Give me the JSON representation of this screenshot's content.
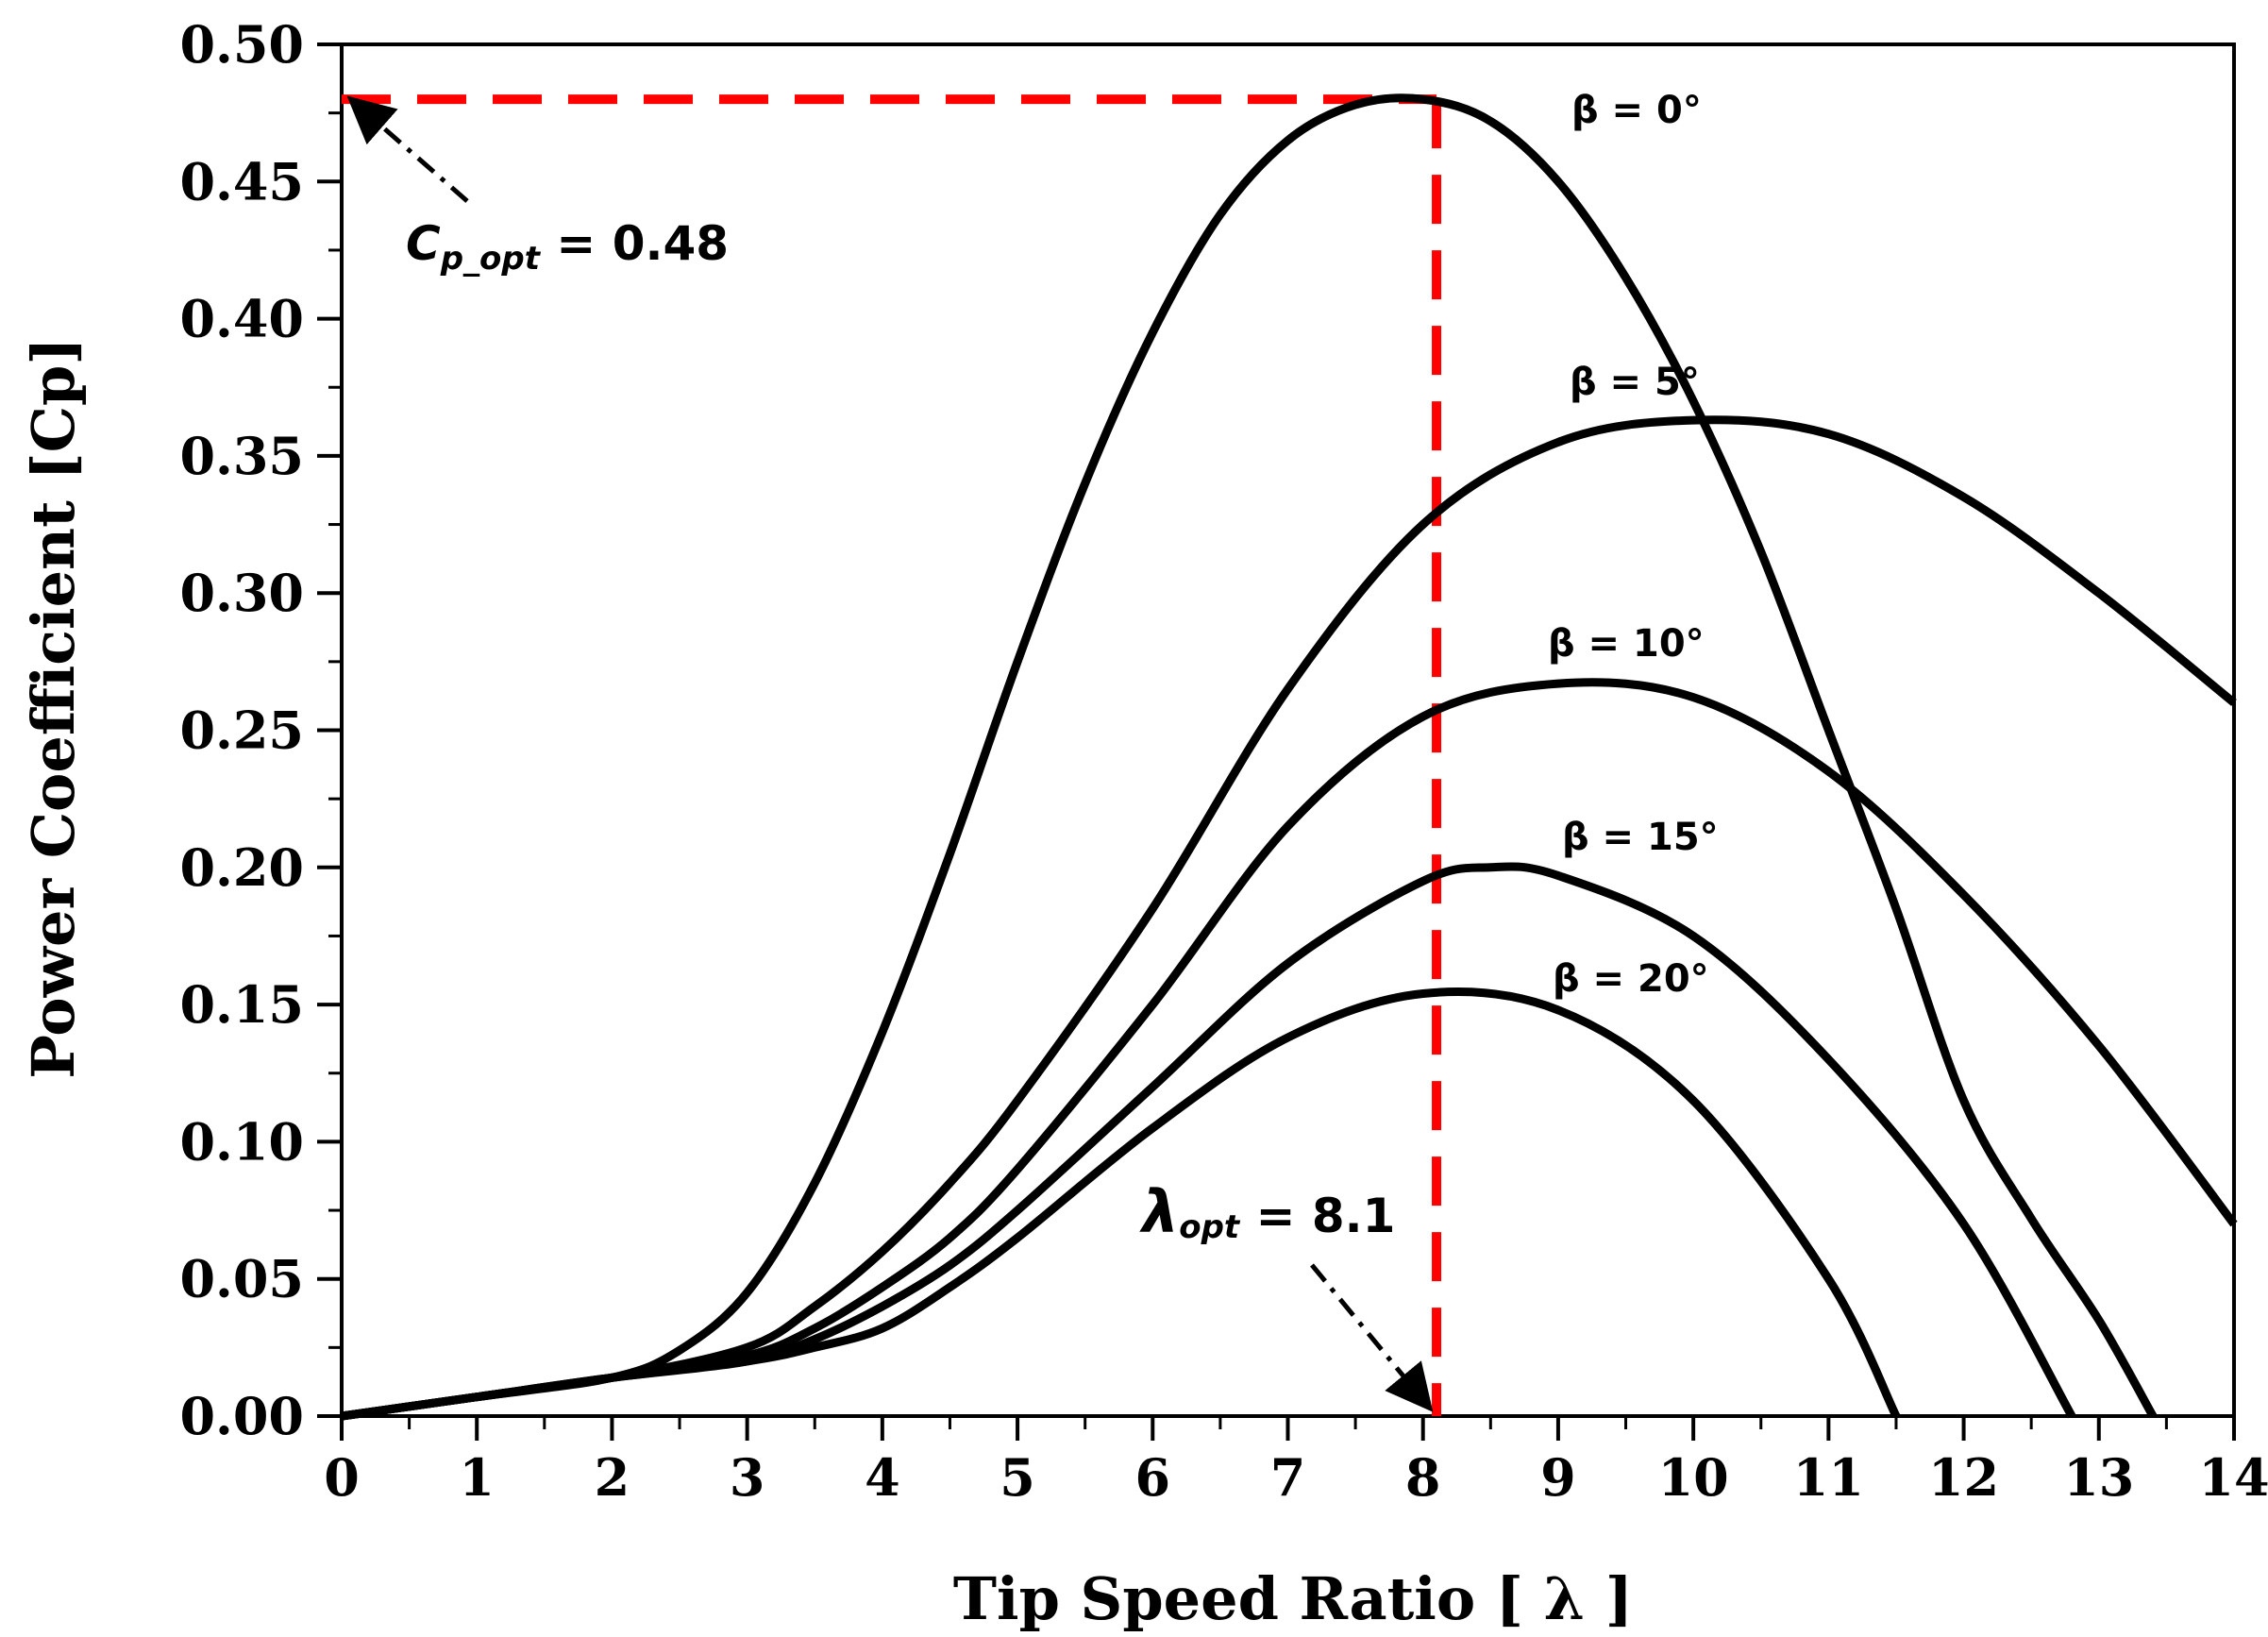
{
  "chart_data": {
    "type": "line",
    "xlabel": "Tip Speed Ratio [ λ ]",
    "ylabel": "Power Coefficient [Cp]",
    "xlim": [
      0,
      14
    ],
    "ylim": [
      0,
      0.5
    ],
    "xticks": [
      "0",
      "1",
      "2",
      "3",
      "4",
      "5",
      "6",
      "7",
      "8",
      "9",
      "10",
      "11",
      "12",
      "13",
      "14"
    ],
    "yticks": [
      "0.00",
      "0.05",
      "0.10",
      "0.15",
      "0.20",
      "0.25",
      "0.30",
      "0.35",
      "0.40",
      "0.45",
      "0.50"
    ],
    "grid": false,
    "series": [
      {
        "name": "β = 0°",
        "x": [
          0,
          1,
          2,
          2.5,
          3,
          3.5,
          4,
          4.5,
          5,
          5.5,
          6,
          6.5,
          7,
          7.5,
          8,
          8.5,
          9,
          9.5,
          10,
          10.5,
          11,
          11.5,
          12,
          12.5,
          13,
          13.4
        ],
        "y": [
          0,
          0.007,
          0.014,
          0.024,
          0.045,
          0.085,
          0.14,
          0.205,
          0.275,
          0.34,
          0.395,
          0.438,
          0.465,
          0.478,
          0.48,
          0.472,
          0.45,
          0.415,
          0.37,
          0.315,
          0.25,
          0.185,
          0.115,
          0.072,
          0.035,
          0
        ]
      },
      {
        "name": "β = 5°",
        "x": [
          0,
          1,
          2,
          3,
          3.5,
          4,
          4.5,
          5,
          6,
          7,
          8,
          9,
          10,
          11,
          12,
          13,
          14
        ],
        "y": [
          0,
          0.007,
          0.014,
          0.025,
          0.04,
          0.06,
          0.085,
          0.115,
          0.185,
          0.265,
          0.325,
          0.355,
          0.363,
          0.358,
          0.335,
          0.3,
          0.26
        ]
      },
      {
        "name": "β = 10°",
        "x": [
          0,
          1,
          2,
          3,
          3.5,
          4,
          4.5,
          5,
          6,
          7,
          8,
          9,
          10,
          11,
          12,
          13,
          14
        ],
        "y": [
          0,
          0.007,
          0.014,
          0.022,
          0.032,
          0.047,
          0.065,
          0.09,
          0.15,
          0.215,
          0.255,
          0.267,
          0.262,
          0.235,
          0.19,
          0.135,
          0.07
        ]
      },
      {
        "name": "β = 15°",
        "x": [
          0,
          1,
          2,
          3,
          3.5,
          4,
          4.5,
          5,
          6,
          7,
          8,
          8.5,
          9,
          10,
          11,
          12,
          12.8
        ],
        "y": [
          0,
          0.007,
          0.014,
          0.02,
          0.028,
          0.04,
          0.055,
          0.075,
          0.12,
          0.165,
          0.195,
          0.2,
          0.197,
          0.175,
          0.13,
          0.07,
          0
        ]
      },
      {
        "name": "β = 20°",
        "x": [
          0,
          1,
          2,
          3,
          3.5,
          4,
          4.5,
          5,
          6,
          7,
          8,
          9,
          10,
          11,
          11.5
        ],
        "y": [
          0,
          0.007,
          0.014,
          0.02,
          0.025,
          0.032,
          0.047,
          0.065,
          0.105,
          0.138,
          0.154,
          0.148,
          0.115,
          0.05,
          0
        ]
      }
    ],
    "reference_lines": {
      "x_opt": 8.1,
      "cp_opt": 0.48,
      "color": "#ff0000"
    },
    "annotations": {
      "cp_symbol": "C",
      "cp_subscript": "p_opt",
      "cp_value": " = 0.48",
      "lambda_symbol": "λ",
      "lambda_subscript": "opt",
      "lambda_value": " = 8.1"
    }
  },
  "colors": {
    "curve": "#000000",
    "reference": "#ff0000"
  }
}
